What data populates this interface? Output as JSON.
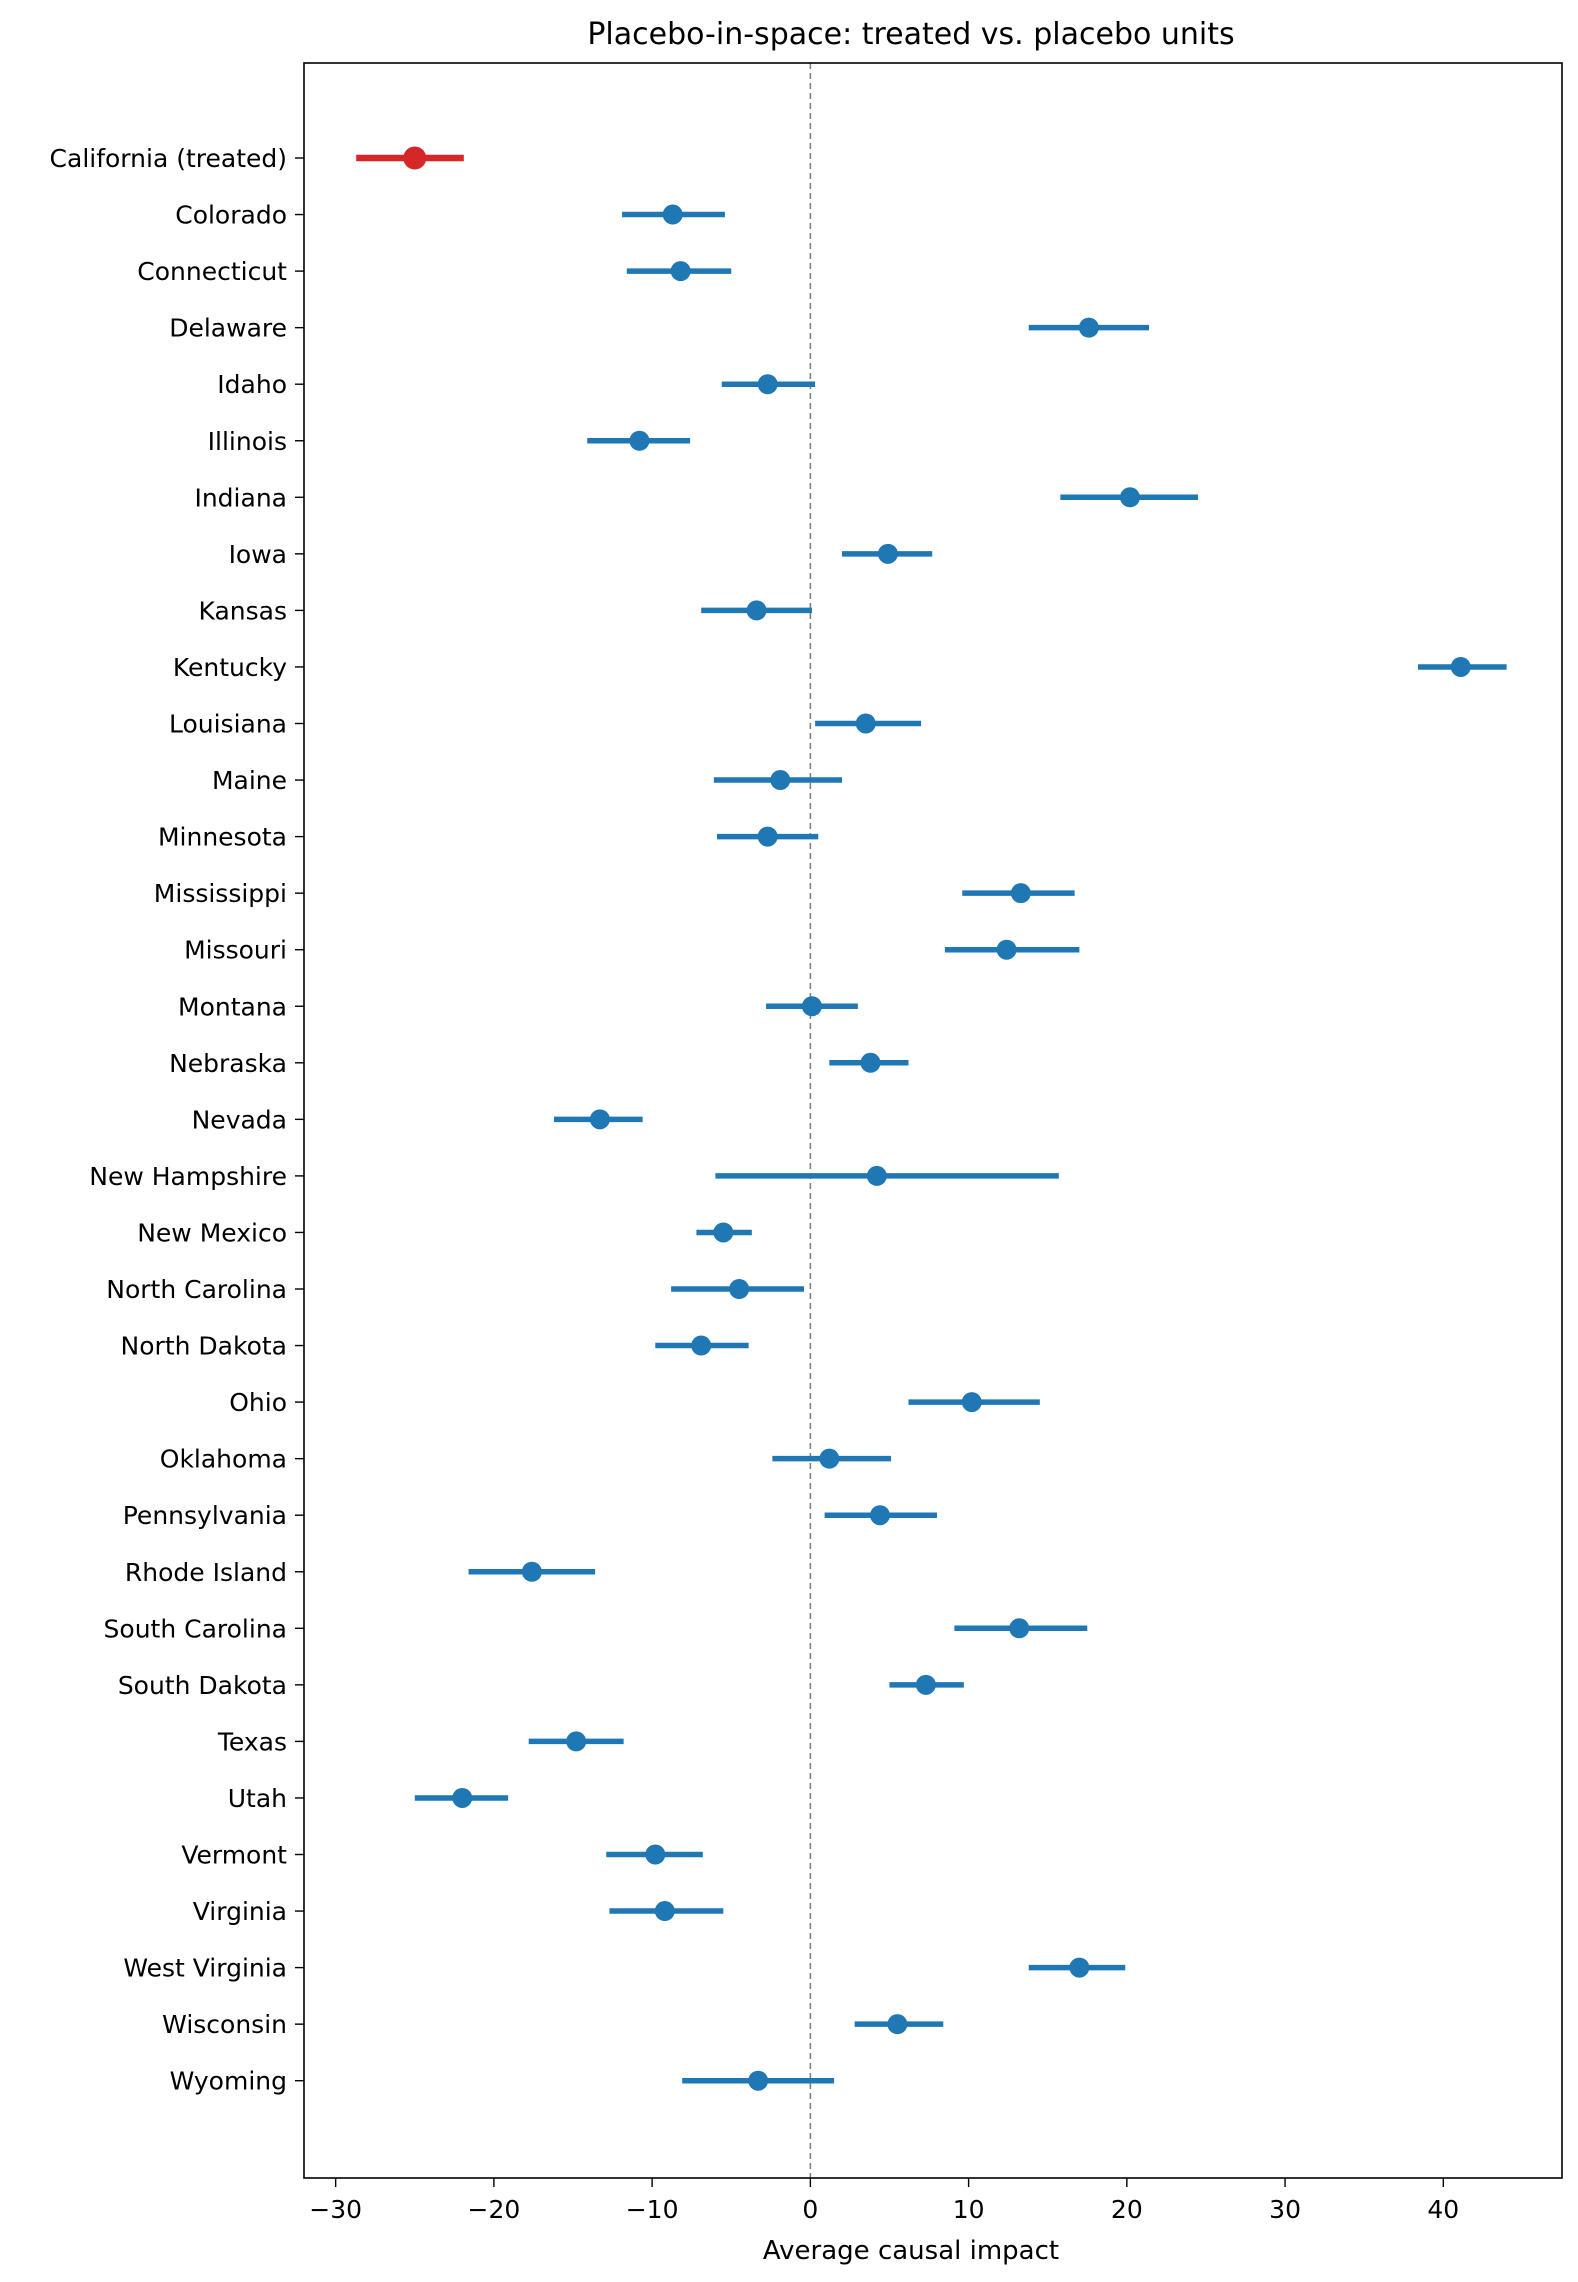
{
  "chart_data": {
    "type": "forest",
    "title": "Placebo-in-space: treated vs. placebo units",
    "xlabel": "Average causal impact",
    "ylabel": "",
    "xlim": [
      -32,
      47.5
    ],
    "xticks": [
      -30,
      -20,
      -10,
      0,
      10,
      20,
      30,
      40
    ],
    "xtick_labels": [
      "−30",
      "−20",
      "−10",
      "0",
      "10",
      "20",
      "30",
      "40"
    ],
    "reference_line": 0,
    "colors": {
      "treated": "#d62728",
      "placebo": "#1f77b4",
      "reference": "#808080"
    },
    "points": [
      {
        "label": "California (treated)",
        "estimate": -25.0,
        "lower": -28.7,
        "upper": -21.9,
        "treated": true
      },
      {
        "label": "Colorado",
        "estimate": -8.7,
        "lower": -11.9,
        "upper": -5.4
      },
      {
        "label": "Connecticut",
        "estimate": -8.2,
        "lower": -11.6,
        "upper": -5.0
      },
      {
        "label": "Delaware",
        "estimate": 17.6,
        "lower": 13.8,
        "upper": 21.4
      },
      {
        "label": "Idaho",
        "estimate": -2.7,
        "lower": -5.6,
        "upper": 0.3
      },
      {
        "label": "Illinois",
        "estimate": -10.8,
        "lower": -14.1,
        "upper": -7.6
      },
      {
        "label": "Indiana",
        "estimate": 20.2,
        "lower": 15.8,
        "upper": 24.5
      },
      {
        "label": "Iowa",
        "estimate": 4.9,
        "lower": 2.0,
        "upper": 7.7
      },
      {
        "label": "Kansas",
        "estimate": -3.4,
        "lower": -6.9,
        "upper": 0.1
      },
      {
        "label": "Kentucky",
        "estimate": 41.1,
        "lower": 38.4,
        "upper": 44.0
      },
      {
        "label": "Louisiana",
        "estimate": 3.5,
        "lower": 0.3,
        "upper": 7.0
      },
      {
        "label": "Maine",
        "estimate": -1.9,
        "lower": -6.1,
        "upper": 2.0
      },
      {
        "label": "Minnesota",
        "estimate": -2.7,
        "lower": -5.9,
        "upper": 0.5
      },
      {
        "label": "Mississippi",
        "estimate": 13.3,
        "lower": 9.6,
        "upper": 16.7
      },
      {
        "label": "Missouri",
        "estimate": 12.4,
        "lower": 8.5,
        "upper": 17.0
      },
      {
        "label": "Montana",
        "estimate": 0.1,
        "lower": -2.8,
        "upper": 3.0
      },
      {
        "label": "Nebraska",
        "estimate": 3.8,
        "lower": 1.2,
        "upper": 6.2
      },
      {
        "label": "Nevada",
        "estimate": -13.3,
        "lower": -16.2,
        "upper": -10.6
      },
      {
        "label": "New Hampshire",
        "estimate": 4.2,
        "lower": -6.0,
        "upper": 15.7
      },
      {
        "label": "New Mexico",
        "estimate": -5.5,
        "lower": -7.2,
        "upper": -3.7
      },
      {
        "label": "North Carolina",
        "estimate": -4.5,
        "lower": -8.8,
        "upper": -0.4
      },
      {
        "label": "North Dakota",
        "estimate": -6.9,
        "lower": -9.8,
        "upper": -3.9
      },
      {
        "label": "Ohio",
        "estimate": 10.2,
        "lower": 6.2,
        "upper": 14.5
      },
      {
        "label": "Oklahoma",
        "estimate": 1.2,
        "lower": -2.4,
        "upper": 5.1
      },
      {
        "label": "Pennsylvania",
        "estimate": 4.4,
        "lower": 0.9,
        "upper": 8.0
      },
      {
        "label": "Rhode Island",
        "estimate": -17.6,
        "lower": -21.6,
        "upper": -13.6
      },
      {
        "label": "South Carolina",
        "estimate": 13.2,
        "lower": 9.1,
        "upper": 17.5
      },
      {
        "label": "South Dakota",
        "estimate": 7.3,
        "lower": 5.0,
        "upper": 9.7
      },
      {
        "label": "Texas",
        "estimate": -14.8,
        "lower": -17.8,
        "upper": -11.8
      },
      {
        "label": "Utah",
        "estimate": -22.0,
        "lower": -25.0,
        "upper": -19.1
      },
      {
        "label": "Vermont",
        "estimate": -9.8,
        "lower": -12.9,
        "upper": -6.8
      },
      {
        "label": "Virginia",
        "estimate": -9.2,
        "lower": -12.7,
        "upper": -5.5
      },
      {
        "label": "West Virginia",
        "estimate": 17.0,
        "lower": 13.8,
        "upper": 19.9
      },
      {
        "label": "Wisconsin",
        "estimate": 5.5,
        "lower": 2.8,
        "upper": 8.4
      },
      {
        "label": "Wyoming",
        "estimate": -3.3,
        "lower": -8.1,
        "upper": 1.5
      }
    ]
  }
}
